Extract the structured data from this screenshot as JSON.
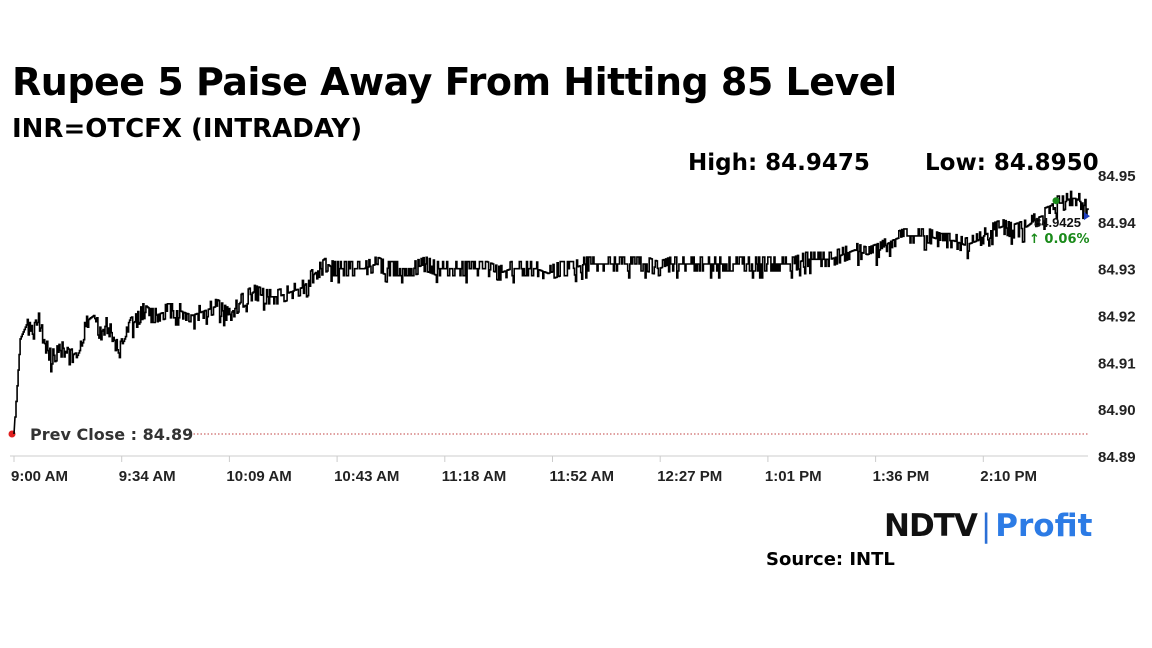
{
  "header": {
    "title": "Rupee 5 Paise Away From Hitting 85 Level",
    "subtitle": "INR=OTCFX (INTRADAY)",
    "high_label": "High: 84.9475",
    "low_label": "Low: 84.8950"
  },
  "chart_data": {
    "type": "line",
    "x_tick_labels": [
      "9:00 AM",
      "9:34 AM",
      "10:09 AM",
      "10:43 AM",
      "11:18 AM",
      "11:52 AM",
      "12:27 PM",
      "1:01 PM",
      "1:36 PM",
      "2:10 PM"
    ],
    "y_tick_labels": [
      "84.95",
      "84.94",
      "84.93",
      "84.92",
      "84.91",
      "84.90",
      "84.89"
    ],
    "ylim": [
      84.89,
      84.95
    ],
    "x_range_minutes": [
      0,
      350
    ],
    "series": [
      {
        "x": [
          0,
          1,
          2,
          4,
          6,
          8,
          10,
          12,
          14,
          16,
          18,
          20,
          22,
          24,
          26,
          28,
          30,
          32,
          34,
          36,
          38,
          40,
          42,
          44,
          46,
          50,
          54,
          58,
          62,
          66,
          70,
          74,
          78,
          82,
          86,
          90,
          94,
          98,
          102,
          104,
          106,
          110,
          114,
          118,
          122,
          126,
          130,
          134,
          138,
          142,
          146,
          150,
          154,
          158,
          162,
          166,
          170,
          174,
          178,
          182,
          186,
          190,
          194,
          198,
          202,
          206,
          210,
          214,
          218,
          222,
          226,
          230,
          234,
          238,
          242,
          246,
          250,
          254,
          258,
          262,
          266,
          270,
          274,
          278,
          282,
          286,
          290,
          294,
          298,
          302,
          306,
          310,
          314,
          318,
          322,
          326,
          330,
          334,
          338,
          340,
          342,
          344,
          346,
          348,
          350
        ],
        "y": [
          84.895,
          84.905,
          84.915,
          84.918,
          84.916,
          84.919,
          84.914,
          84.911,
          84.912,
          84.913,
          84.911,
          84.912,
          84.915,
          84.919,
          84.92,
          84.916,
          84.918,
          84.916,
          84.912,
          84.915,
          84.918,
          84.919,
          84.921,
          84.92,
          84.92,
          84.921,
          84.921,
          84.92,
          84.921,
          84.922,
          84.92,
          84.923,
          84.925,
          84.924,
          84.924,
          84.925,
          84.926,
          84.929,
          84.931,
          84.93,
          84.93,
          84.93,
          84.93,
          84.931,
          84.93,
          84.93,
          84.93,
          84.931,
          84.93,
          84.93,
          84.93,
          84.93,
          84.93,
          84.929,
          84.93,
          84.93,
          84.93,
          84.929,
          84.93,
          84.93,
          84.931,
          84.931,
          84.931,
          84.931,
          84.931,
          84.931,
          84.93,
          84.931,
          84.931,
          84.931,
          84.931,
          84.931,
          84.931,
          84.931,
          84.931,
          84.931,
          84.931,
          84.931,
          84.932,
          84.932,
          84.932,
          84.933,
          84.934,
          84.933,
          84.934,
          84.936,
          84.937,
          84.937,
          84.937,
          84.936,
          84.936,
          84.935,
          84.936,
          84.938,
          84.939,
          84.938,
          84.939,
          84.941,
          84.942,
          84.944,
          84.944,
          84.945,
          84.945,
          84.944,
          84.9425
        ]
      }
    ],
    "prev_close_label": "Prev Close : 84.89",
    "prev_close_value": 84.89,
    "last_value_label": "84.9425",
    "change_label": "↑ 0.06%",
    "high_value": 84.9475,
    "last_value": 84.9425,
    "colors": {
      "line": "#000000",
      "prev_close_marker": "#e02020",
      "high_marker": "#1a8a1a",
      "last_marker": "#1f3fbf",
      "change_text": "#1a8a1a",
      "axis": "#cccccc"
    }
  },
  "footer": {
    "brand_ndtv": "NDTV",
    "brand_sep": "|",
    "brand_profit": "Profit",
    "source": "Source: INTL"
  }
}
